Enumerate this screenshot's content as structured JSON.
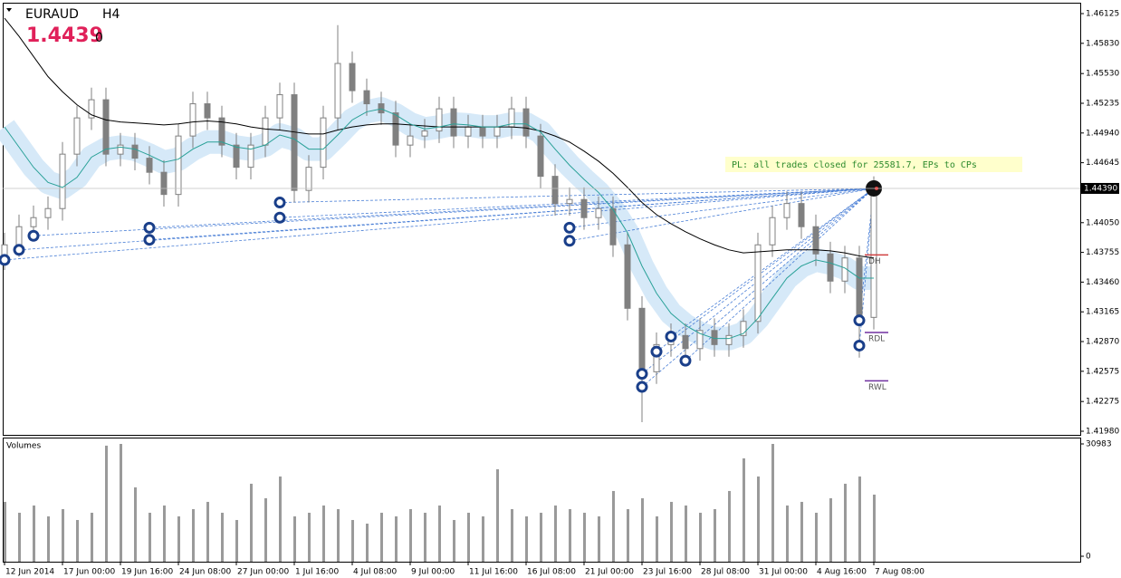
{
  "chart_data": {
    "type": "candlestick",
    "symbol": "EURAUD",
    "timeframe": "H4",
    "bid": "1.4439",
    "spread": "0",
    "annotation": "PL: all trades closed for 25581.7, EPs to CPs",
    "last_price": {
      "value": 1.4439,
      "label": "1.44390"
    },
    "categories": [
      "12 Jun 2014",
      null,
      null,
      null,
      "17 Jun 00:00",
      null,
      null,
      null,
      "19 Jun 16:00",
      null,
      null,
      null,
      "24 Jun 08:00",
      null,
      null,
      null,
      "27 Jun 00:00",
      null,
      null,
      null,
      "1 Jul 16:00",
      null,
      null,
      null,
      "4 Jul 08:00",
      null,
      null,
      null,
      "9 Jul 00:00",
      null,
      null,
      null,
      "11 Jul 16:00",
      null,
      null,
      null,
      "16 Jul 08:00",
      null,
      null,
      null,
      "21 Jul 00:00",
      null,
      null,
      null,
      "23 Jul 16:00",
      null,
      null,
      null,
      "28 Jul 08:00",
      null,
      null,
      null,
      "31 Jul 00:00",
      null,
      null,
      null,
      "4 Aug 16:00",
      null,
      null,
      null,
      "7 Aug 08:00"
    ],
    "open": [
      1.437,
      1.4383,
      1.4401,
      1.441,
      1.4419,
      1.4473,
      1.4509,
      1.4527,
      1.4473,
      1.4482,
      1.4469,
      1.4455,
      1.4433,
      1.4491,
      1.4523,
      1.4509,
      1.4482,
      1.446,
      1.4482,
      1.4509,
      1.4532,
      1.4437,
      1.446,
      1.4509,
      1.4563,
      1.4536,
      1.4523,
      1.4514,
      1.4482,
      1.4491,
      1.4496,
      1.4518,
      1.4491,
      1.45,
      1.4491,
      1.45,
      1.4518,
      1.4491,
      1.4451,
      1.4424,
      1.4428,
      1.441,
      1.4419,
      1.4383,
      1.432,
      1.4257,
      1.4284,
      1.4293,
      1.428,
      1.4298,
      1.4284,
      1.4293,
      1.4307,
      1.4383,
      1.441,
      1.4424,
      1.4401,
      1.4374,
      1.4347,
      1.437,
      1.4311
    ],
    "high": [
      1.4395,
      1.4413,
      1.4422,
      1.4431,
      1.4485,
      1.4521,
      1.4539,
      1.4539,
      1.4494,
      1.4494,
      1.4481,
      1.4467,
      1.4503,
      1.4535,
      1.4535,
      1.4521,
      1.4494,
      1.4494,
      1.4521,
      1.4544,
      1.4544,
      1.4472,
      1.4521,
      1.4601,
      1.4575,
      1.4548,
      1.4535,
      1.4526,
      1.4503,
      1.4508,
      1.453,
      1.453,
      1.4512,
      1.4512,
      1.4512,
      1.453,
      1.453,
      1.4503,
      1.4463,
      1.444,
      1.444,
      1.4431,
      1.4431,
      1.4395,
      1.4332,
      1.4296,
      1.4305,
      1.4305,
      1.431,
      1.431,
      1.4305,
      1.4319,
      1.4395,
      1.4422,
      1.4436,
      1.4436,
      1.4413,
      1.4386,
      1.4382,
      1.4382,
      1.4451
    ],
    "low": [
      1.4358,
      1.4371,
      1.4389,
      1.4398,
      1.4407,
      1.4461,
      1.4497,
      1.4461,
      1.4461,
      1.4457,
      1.4443,
      1.4421,
      1.4421,
      1.4479,
      1.4497,
      1.447,
      1.4448,
      1.4448,
      1.447,
      1.4497,
      1.4425,
      1.4425,
      1.4448,
      1.4497,
      1.4524,
      1.4511,
      1.4502,
      1.447,
      1.447,
      1.4479,
      1.4484,
      1.4479,
      1.4479,
      1.4479,
      1.4479,
      1.4488,
      1.4479,
      1.4439,
      1.4412,
      1.4412,
      1.4398,
      1.4398,
      1.4371,
      1.4308,
      1.4207,
      1.4245,
      1.4272,
      1.4268,
      1.4268,
      1.4272,
      1.4272,
      1.4281,
      1.4295,
      1.4371,
      1.4398,
      1.4389,
      1.4362,
      1.4335,
      1.4335,
      1.4271,
      1.4299
    ],
    "close": [
      1.4383,
      1.4401,
      1.441,
      1.4419,
      1.4473,
      1.4509,
      1.4527,
      1.4473,
      1.4482,
      1.4469,
      1.4455,
      1.4433,
      1.4491,
      1.4523,
      1.4509,
      1.4482,
      1.446,
      1.4482,
      1.4509,
      1.4532,
      1.4437,
      1.446,
      1.4509,
      1.4563,
      1.4536,
      1.4523,
      1.4514,
      1.4482,
      1.4491,
      1.4496,
      1.4518,
      1.4491,
      1.45,
      1.4491,
      1.45,
      1.4518,
      1.4491,
      1.4451,
      1.4424,
      1.4428,
      1.441,
      1.4419,
      1.4383,
      1.432,
      1.4257,
      1.4284,
      1.4293,
      1.428,
      1.4298,
      1.4284,
      1.4293,
      1.4307,
      1.4383,
      1.441,
      1.4424,
      1.4401,
      1.4374,
      1.4347,
      1.437,
      1.4311,
      1.4439
    ],
    "candle_color": "#808080",
    "series": [
      {
        "color": "#000000",
        "values": [
          1.4608,
          1.459,
          1.457,
          1.455,
          1.4535,
          1.4522,
          1.4512,
          1.4507,
          1.4505,
          1.4504,
          1.4503,
          1.4502,
          1.4503,
          1.4505,
          1.4506,
          1.4505,
          1.4503,
          1.45,
          1.4498,
          1.4497,
          1.4495,
          1.4493,
          1.4493,
          1.4497,
          1.45,
          1.4502,
          1.4503,
          1.4503,
          1.4502,
          1.4501,
          1.45,
          1.45,
          1.45,
          1.45,
          1.45,
          1.45,
          1.4499,
          1.4496,
          1.4491,
          1.4485,
          1.4476,
          1.4466,
          1.4454,
          1.444,
          1.4425,
          1.4413,
          1.4404,
          1.4396,
          1.4389,
          1.4383,
          1.4378,
          1.4375,
          1.4376,
          1.4377,
          1.4378,
          1.4378,
          1.4378,
          1.4377,
          1.4375,
          1.4372,
          1.437
        ]
      },
      {
        "color": "#2aa198",
        "band_color": "#d6e9f8",
        "values": [
          1.45,
          1.448,
          1.446,
          1.4445,
          1.444,
          1.445,
          1.447,
          1.4478,
          1.448,
          1.4478,
          1.4472,
          1.4465,
          1.4468,
          1.4478,
          1.4485,
          1.4485,
          1.448,
          1.4478,
          1.4482,
          1.4492,
          1.4488,
          1.4478,
          1.4478,
          1.4492,
          1.4507,
          1.4515,
          1.4518,
          1.4512,
          1.4503,
          1.4498,
          1.45,
          1.4503,
          1.4502,
          1.45,
          1.45,
          1.4503,
          1.4503,
          1.4495,
          1.4478,
          1.4462,
          1.4448,
          1.4435,
          1.4418,
          1.4395,
          1.4362,
          1.4335,
          1.4315,
          1.4303,
          1.4295,
          1.429,
          1.429,
          1.4295,
          1.431,
          1.433,
          1.435,
          1.4362,
          1.4368,
          1.4365,
          1.436,
          1.435,
          1.435
        ]
      }
    ],
    "entries": {
      "x": [
        0,
        1,
        2,
        10,
        10,
        19,
        19,
        39,
        39,
        44,
        44,
        45,
        46,
        47,
        59,
        59
      ],
      "y": [
        1.4368,
        1.4378,
        1.4392,
        1.44,
        1.4388,
        1.4425,
        1.441,
        1.44,
        1.4387,
        1.4255,
        1.4242,
        1.4277,
        1.4292,
        1.4268,
        1.4308,
        1.4283
      ]
    },
    "exit": {
      "x": 60,
      "y": 1.4439
    },
    "levels": [
      {
        "label": "DH",
        "value": 1.4373,
        "color": "#d04040"
      },
      {
        "label": "RDL",
        "value": 1.4296,
        "color": "#7030a0"
      },
      {
        "label": "RWL",
        "value": 1.4248,
        "color": "#7030a0"
      }
    ],
    "ylim": [
      1.41944,
      1.4626
    ],
    "yticks": [
      1.46125,
      {
        "value": 1.4583,
        "label": "1.45830"
      },
      {
        "value": 1.4553,
        "label": "1.45530"
      },
      1.45235,
      {
        "value": 1.4494,
        "label": "1.44940"
      },
      1.44645,
      {
        "value": 1.4405,
        "label": "1.44050"
      },
      1.43755,
      {
        "value": 1.4346,
        "label": "1.43460"
      },
      1.43165,
      {
        "value": 1.4287,
        "label": "1.42870"
      },
      1.42575,
      1.42275,
      {
        "value": 1.4198,
        "label": "1.41980"
      }
    ],
    "volume_title": "Volumes",
    "volumes": [
      15000,
      12000,
      14000,
      11000,
      13000,
      10000,
      12000,
      30500,
      30983,
      19000,
      12000,
      14000,
      11000,
      13000,
      15000,
      12000,
      10000,
      20000,
      16000,
      22000,
      11000,
      12000,
      14000,
      13000,
      10000,
      9000,
      12000,
      11000,
      13000,
      12000,
      14000,
      10000,
      12000,
      11000,
      24000,
      13000,
      11000,
      12000,
      14000,
      13000,
      12000,
      11000,
      18000,
      13000,
      16000,
      11000,
      15000,
      14000,
      12000,
      13000,
      18000,
      27000,
      22000,
      30983,
      14000,
      15000,
      12000,
      16000,
      20000,
      22000,
      17000
    ],
    "volume_color": "#9a9a9a",
    "vlim": [
      0,
      30983
    ],
    "vticks": [
      30983,
      0
    ]
  }
}
